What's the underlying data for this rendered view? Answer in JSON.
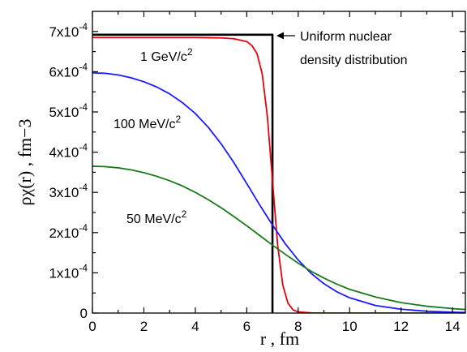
{
  "chart_data": {
    "type": "line",
    "xlabel": "r , fm",
    "ylabel": "ρχ(r) , fm−3",
    "xlim": [
      0,
      14.5
    ],
    "ylim": [
      0,
      0.00075
    ],
    "grid": false,
    "x_ticks": [
      0,
      2,
      4,
      6,
      8,
      10,
      12,
      14
    ],
    "y_ticks": [
      {
        "value": 0,
        "label": "0"
      },
      {
        "value": 0.0001,
        "label": "1x10-4"
      },
      {
        "value": 0.0002,
        "label": "2x10-4"
      },
      {
        "value": 0.0003,
        "label": "3x10-4"
      },
      {
        "value": 0.0004,
        "label": "4x10-4"
      },
      {
        "value": 0.0005,
        "label": "5x10-4"
      },
      {
        "value": 0.0006,
        "label": "6x10-4"
      },
      {
        "value": 0.0007,
        "label": "7x10-4"
      }
    ],
    "series": [
      {
        "name": "Uniform nuclear density distribution",
        "color": "#000000",
        "x": [
          0,
          7.0,
          7.0,
          7.0
        ],
        "y": [
          0.000692,
          0.000692,
          0.000692,
          0
        ]
      },
      {
        "name": "1 GeV/c2",
        "color": "#e8000b",
        "x": [
          0,
          1,
          2,
          3,
          4,
          5,
          5.5,
          6.0,
          6.2,
          6.4,
          6.6,
          6.8,
          7.0,
          7.2,
          7.4,
          7.6,
          7.8,
          8.0,
          8.5,
          9,
          10,
          12,
          14.5
        ],
        "y": [
          0.000685,
          0.000685,
          0.000685,
          0.000685,
          0.000685,
          0.000684,
          0.000682,
          0.000675,
          0.000665,
          0.000645,
          0.000595,
          0.00049,
          0.00033,
          0.00017,
          7e-05,
          2.5e-05,
          8e-06,
          3e-06,
          5e-07,
          0,
          0,
          0,
          0
        ]
      },
      {
        "name": "100 MeV/c2",
        "color": "#1a1aff",
        "x": [
          0,
          0.5,
          1,
          1.5,
          2,
          2.5,
          3,
          3.5,
          4,
          4.5,
          5,
          5.5,
          6,
          6.5,
          7,
          7.5,
          8,
          8.5,
          9,
          9.5,
          10,
          11,
          12,
          13,
          14,
          14.5
        ],
        "y": [
          0.000597,
          0.000596,
          0.000592,
          0.000585,
          0.000575,
          0.000562,
          0.000545,
          0.000523,
          0.000496,
          0.000462,
          0.000421,
          0.000374,
          0.000322,
          0.000269,
          0.000219,
          0.000172,
          0.000132,
          9.9e-05,
          7.3e-05,
          5.3e-05,
          3.8e-05,
          1.9e-05,
          9.5e-06,
          4.6e-06,
          2.2e-06,
          1.5e-06
        ]
      },
      {
        "name": "50 MeV/c2",
        "color": "#1a7a1a",
        "x": [
          0,
          0.5,
          1,
          1.5,
          2,
          2.5,
          3,
          3.5,
          4,
          4.5,
          5,
          5.5,
          6,
          6.5,
          7,
          7.5,
          8,
          8.5,
          9,
          9.5,
          10,
          11,
          12,
          13,
          14,
          14.5
        ],
        "y": [
          0.000365,
          0.000364,
          0.000361,
          0.000356,
          0.000349,
          0.00034,
          0.000329,
          0.000316,
          0.0003,
          0.000282,
          0.000262,
          0.00024,
          0.000217,
          0.000193,
          0.000169,
          0.000146,
          0.000124,
          0.000104,
          8.7e-05,
          7.2e-05,
          5.9e-05,
          4e-05,
          2.6e-05,
          1.7e-05,
          1.1e-05,
          9e-06
        ]
      }
    ],
    "annotations": {
      "uniform": "Uniform nuclear",
      "uniform2": "density distribution",
      "gev": "1 GeV/c",
      "mev100": "100 MeV/c",
      "mev50": "50 MeV/c",
      "sup2": "2"
    }
  }
}
